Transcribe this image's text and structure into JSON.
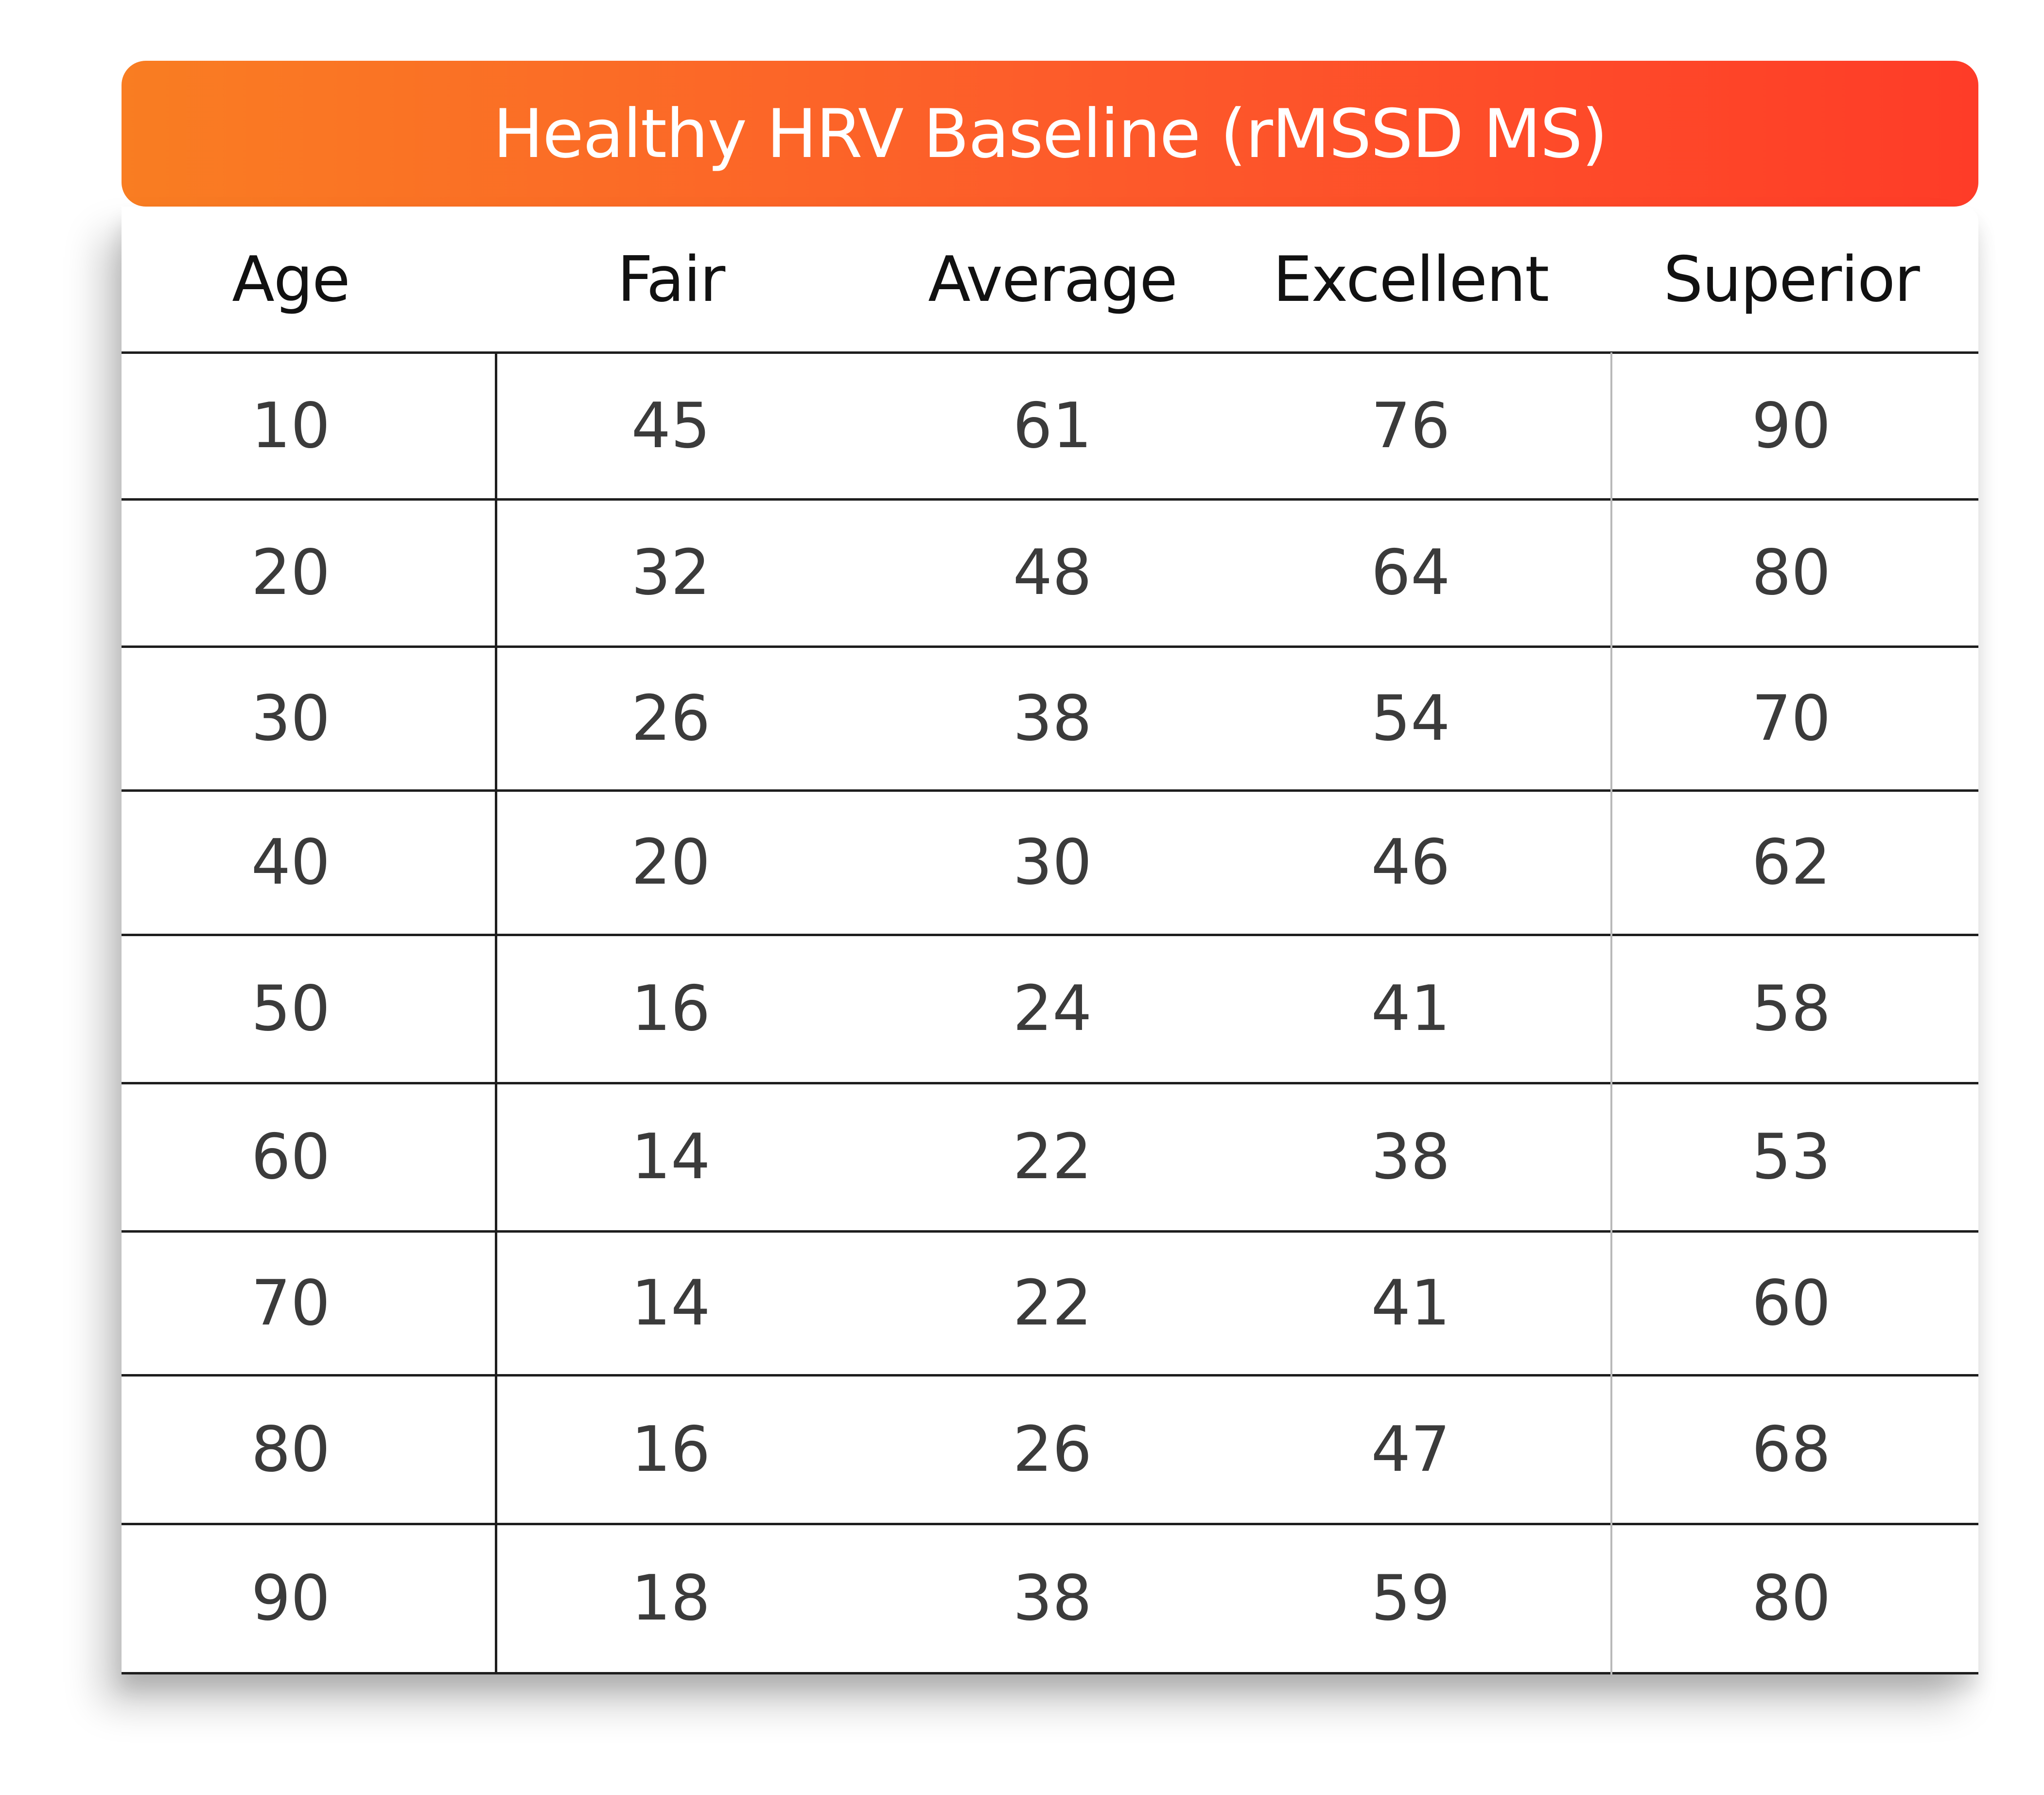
{
  "chart_data": {
    "type": "table",
    "title": "Healthy HRV Baseline (rMSSD MS)",
    "columns": [
      "Age",
      "Fair",
      "Average",
      "Excellent",
      "Superior"
    ],
    "rows": [
      [
        "10",
        "45",
        "61",
        "76",
        "90"
      ],
      [
        "20",
        "32",
        "48",
        "64",
        "80"
      ],
      [
        "30",
        "26",
        "38",
        "54",
        "70"
      ],
      [
        "40",
        "20",
        "30",
        "46",
        "62"
      ],
      [
        "50",
        "16",
        "24",
        "41",
        "58"
      ],
      [
        "60",
        "14",
        "22",
        "38",
        "53"
      ],
      [
        "70",
        "14",
        "22",
        "41",
        "60"
      ],
      [
        "80",
        "16",
        "26",
        "47",
        "68"
      ],
      [
        "90",
        "18",
        "38",
        "59",
        "80"
      ]
    ],
    "header_colors": [
      "#f97d22",
      "#fe3c28"
    ]
  }
}
